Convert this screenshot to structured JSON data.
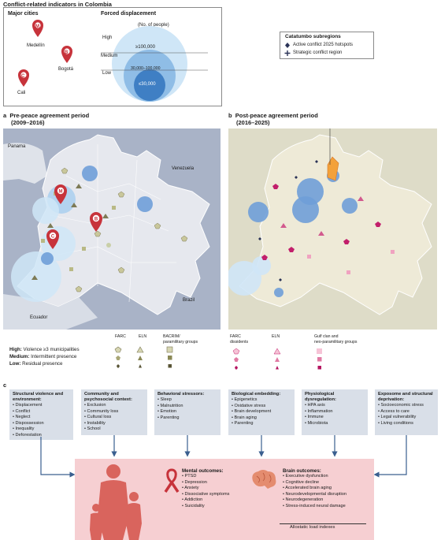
{
  "title": "Conflict-related indicators in Colombia",
  "legend": {
    "major_cities_title": "Major cities",
    "cities": [
      {
        "letter": "M",
        "name": "Medellín"
      },
      {
        "letter": "B",
        "name": "Bogotá"
      },
      {
        "letter": "C",
        "name": "Cali"
      }
    ],
    "displacement_title": "Forced displacement",
    "displacement_unit": "(No. of people)",
    "levels": [
      {
        "level": "High",
        "range": "≥100,000"
      },
      {
        "level": "Medium",
        "range": "30,000–100,000"
      },
      {
        "level": "Low",
        "range": "≤30,000"
      }
    ]
  },
  "catatumbo": {
    "title": "Catatumbo subregions",
    "items": [
      "Active conflict 2025 hotspots",
      "Strategic conflict region"
    ]
  },
  "panel_a": {
    "letter": "a",
    "title_line1": "Pre-peace agreement period",
    "title_line2": "(2009–2016)",
    "labels": {
      "panama": "Panama",
      "venezuela": "Venezuela",
      "ecuador": "Ecuador",
      "brazil": "Brazil"
    },
    "groups": [
      "FARC",
      "ELN",
      "BACRIM/",
      "paramilitary groups"
    ],
    "presence": [
      {
        "bold": "High:",
        "text": "Violence ≥3 municipalities"
      },
      {
        "bold": "Medium:",
        "text": "Intermittent presence"
      },
      {
        "bold": "Low:",
        "text": "Residual presence"
      }
    ]
  },
  "panel_b": {
    "letter": "b",
    "title_line1": "Post-peace agreement period",
    "title_line2": "(2016–2025)",
    "groups": [
      "FARC",
      "dissidents",
      "ELN",
      "Gulf clan and",
      "neo-paramilitary groups"
    ]
  },
  "panel_c": {
    "letter": "c",
    "boxes": [
      {
        "title": "Structural violence and environment:",
        "items": [
          "Displacement",
          "Conflict",
          "Neglect",
          "Dispossession",
          "Inequality",
          "Deforestation"
        ]
      },
      {
        "title": "Community and psychosocial context:",
        "items": [
          "Exclusion",
          "Community loss",
          "Cultural loss",
          "Instability",
          "School"
        ]
      },
      {
        "title": "Behavioral stressors:",
        "items": [
          "Sleep",
          "Malnutrition",
          "Emotion",
          "Parenting"
        ]
      },
      {
        "title": "Biological embedding:",
        "items": [
          "Epigenetics",
          "Oxidative stress",
          "Brain development",
          "Brain aging",
          "Parenting"
        ]
      },
      {
        "title": "Physiological dysregulation:",
        "items": [
          "HPA axis",
          "Inflammation",
          "Immune",
          "Microbiota"
        ]
      },
      {
        "title": "Exposome and structural deprivation:",
        "items": [
          "Socioeconomic stress",
          "Access to care",
          "Legal vulnerability",
          "Living conditions"
        ]
      }
    ],
    "mental": {
      "title": "Mental outcomes:",
      "items": [
        "PTSD",
        "Depression",
        "Anxiety",
        "Dissociative symptoms",
        "Addiction",
        "Suicidality"
      ]
    },
    "brain": {
      "title": "Brain outcomes:",
      "items": [
        "Executive dysfunction",
        "Cognitive decline",
        "Accelerated brain aging",
        "Neurodevelopmental disruption",
        "Neurodegeneration",
        "Stress-induced neural damage"
      ]
    },
    "allostatic": "Allostatic load indexes"
  },
  "colors": {
    "map_bg": "#a9b3c7",
    "colombia_a": "#e6e8ee",
    "colombia_b": "#eeead7",
    "circle": "#6f9fd8",
    "pink_box": "#f6cfd2",
    "pin": "#c7333b",
    "catatumbo": "#f3a13a"
  }
}
